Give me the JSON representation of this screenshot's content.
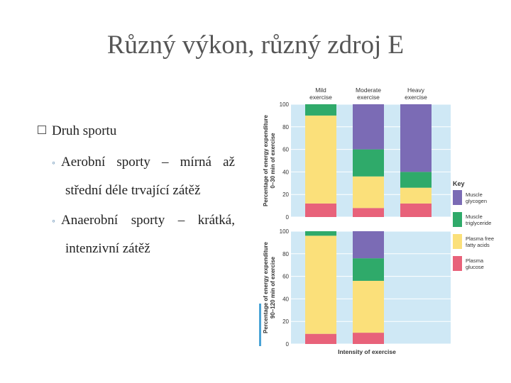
{
  "slide": {
    "title": "Různý výkon, různý zdroj E",
    "bullet": "Druh sportu",
    "sub1_line1": "Aerobní sporty – mírná až",
    "sub1_line2": "střední déle trvající zátěž",
    "sub2_line1": "Anaerobní sporty – krátká,",
    "sub2_line2": "intenzivní zátěž"
  },
  "chart_data": [
    {
      "type": "bar",
      "stacked": true,
      "ylabel": "Percentage of energy expenditure 0–30 min of exercise",
      "ylim": [
        0,
        100
      ],
      "yticks": [
        0,
        20,
        40,
        60,
        80,
        100
      ],
      "categories": [
        "Mild exercise",
        "Moderate exercise",
        "Heavy exercise"
      ],
      "series": [
        {
          "name": "Plasma glucose",
          "values": [
            12,
            8,
            12
          ]
        },
        {
          "name": "Plasma free fatty acids",
          "values": [
            78,
            28,
            14
          ]
        },
        {
          "name": "Muscle triglyceride",
          "values": [
            10,
            24,
            14
          ]
        },
        {
          "name": "Muscle glycogen",
          "values": [
            0,
            40,
            60
          ]
        }
      ]
    },
    {
      "type": "bar",
      "stacked": true,
      "ylabel": "Percentage of energy expenditure 90–120 min of exercise",
      "xlabel": "Intensity of exercise",
      "ylim": [
        0,
        100
      ],
      "yticks": [
        0,
        20,
        40,
        60,
        80,
        100
      ],
      "categories": [
        "Mild exercise",
        "Moderate exercise",
        "Heavy exercise"
      ],
      "series": [
        {
          "name": "Plasma glucose",
          "values": [
            9,
            10,
            0
          ]
        },
        {
          "name": "Plasma free fatty acids",
          "values": [
            87,
            46,
            0
          ]
        },
        {
          "name": "Muscle triglyceride",
          "values": [
            4,
            20,
            0
          ]
        },
        {
          "name": "Muscle glycogen",
          "values": [
            0,
            24,
            0
          ]
        }
      ]
    }
  ],
  "legend": {
    "title": "Key",
    "items": [
      {
        "label1": "Muscle",
        "label2": "glycogen",
        "color": "#7b6bb5"
      },
      {
        "label1": "Muscle",
        "label2": "triglyceride",
        "color": "#2faa6a"
      },
      {
        "label1": "Plasma free",
        "label2": "fatty acids",
        "color": "#fbe07a"
      },
      {
        "label1": "Plasma",
        "label2": "glucose",
        "color": "#e8627a"
      }
    ]
  },
  "colors": {
    "panel_bg": "#cfe8f5",
    "glucose": "#e8627a",
    "ffa": "#fbe07a",
    "triglyceride": "#2faa6a",
    "glycogen": "#7b6bb5"
  }
}
